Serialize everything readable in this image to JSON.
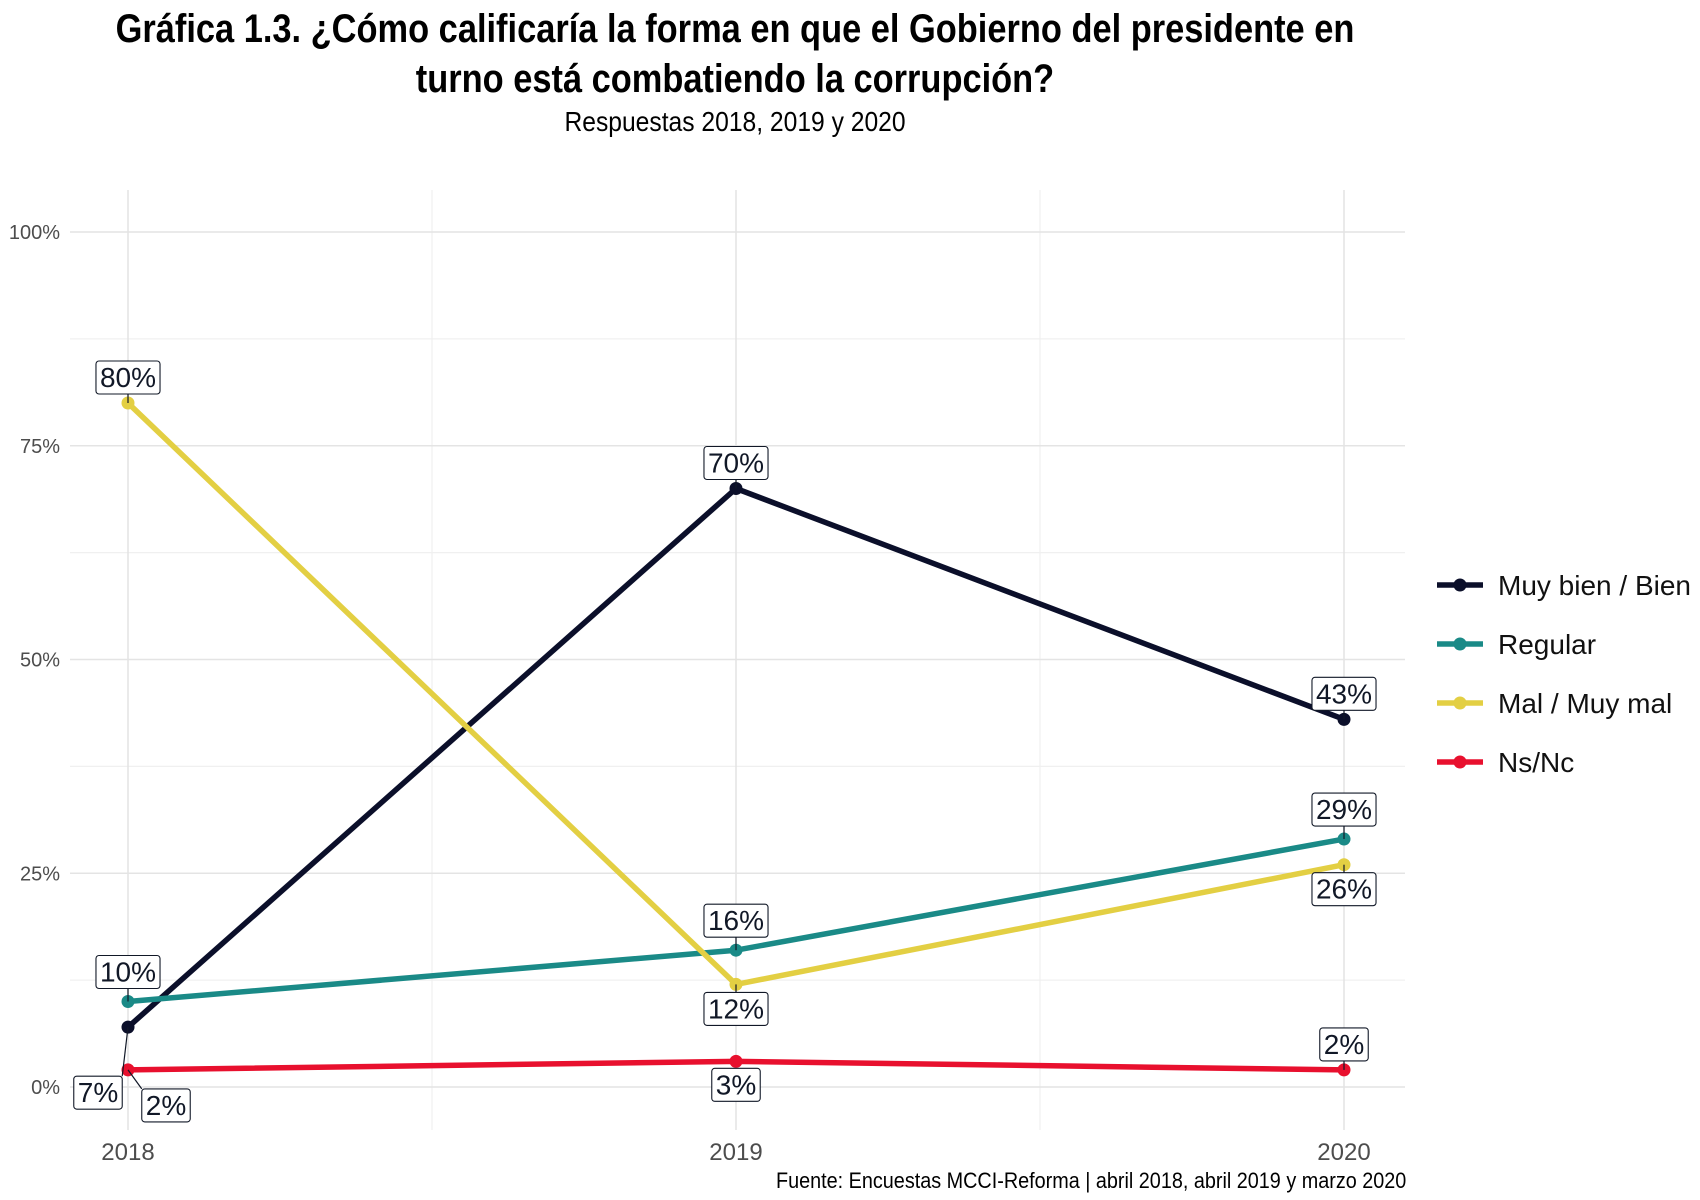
{
  "chart_data": {
    "type": "line",
    "title": "Gráfica 1.3. ¿Cómo calificaría la forma en que el Gobierno del presidente en turno está combatiendo la corrupción?",
    "subtitle": "Respuestas 2018, 2019 y 2020",
    "x": [
      "2018",
      "2019",
      "2020"
    ],
    "y_ticks": [
      "0%",
      "25%",
      "50%",
      "75%",
      "100%"
    ],
    "ylim": [
      0,
      100
    ],
    "grid": true,
    "legend_position": "right",
    "series": [
      {
        "name": "Muy bien / Bien",
        "color": "#0b0f2a",
        "values": [
          7,
          70,
          43
        ],
        "labels": [
          "7%",
          "70%",
          "43%"
        ]
      },
      {
        "name": "Regular",
        "color": "#1a8a87",
        "values": [
          10,
          16,
          29
        ],
        "labels": [
          "10%",
          "16%",
          "29%"
        ]
      },
      {
        "name": "Mal / Muy mal",
        "color": "#e3cf43",
        "values": [
          80,
          12,
          26
        ],
        "labels": [
          "80%",
          "12%",
          "26%"
        ]
      },
      {
        "name": "Ns/Nc",
        "color": "#e8102e",
        "values": [
          2,
          3,
          2
        ],
        "labels": [
          "2%",
          "3%",
          "2%"
        ]
      }
    ],
    "source": "Fuente: Encuestas MCCI-Reforma | abril 2018, abril 2019 y marzo 2020"
  }
}
